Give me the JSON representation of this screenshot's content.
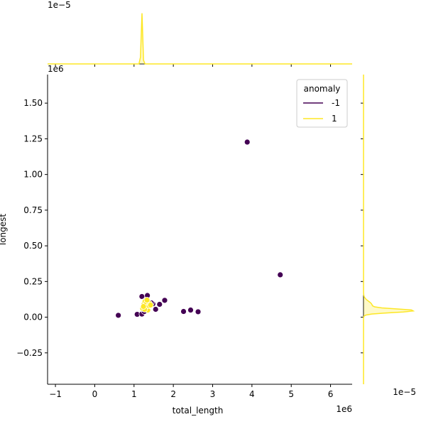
{
  "chart_data": {
    "type": "scatter",
    "subtype": "jointplot",
    "xlabel": "total_length",
    "ylabel": "longest",
    "x_offset_label": "1e6",
    "y_offset_label": "1e6",
    "xlim": [
      -1.2,
      6.55
    ],
    "ylim": [
      -0.47,
      1.7
    ],
    "xticks": [
      -1,
      0,
      1,
      2,
      3,
      4,
      5,
      6
    ],
    "xtick_labels": [
      "−1",
      "0",
      "1",
      "2",
      "3",
      "4",
      "5",
      "6"
    ],
    "yticks": [
      -0.25,
      0.0,
      0.25,
      0.5,
      0.75,
      1.0,
      1.25,
      1.5
    ],
    "ytick_labels": [
      "−0.25",
      "0.00",
      "0.25",
      "0.50",
      "0.75",
      "1.00",
      "1.25",
      "1.50"
    ],
    "grid": false,
    "legend": {
      "title": "anomaly",
      "placement": "top-right",
      "entries": [
        {
          "label": "-1",
          "color": "#440154"
        },
        {
          "label": "1",
          "color": "#fde725"
        }
      ]
    },
    "series": [
      {
        "name": "-1",
        "color": "#440154",
        "points": [
          [
            3.88,
            1.227
          ],
          [
            4.72,
            0.297
          ],
          [
            0.6,
            0.013
          ],
          [
            1.08,
            0.02
          ],
          [
            1.2,
            0.022
          ],
          [
            1.2,
            0.145
          ],
          [
            1.34,
            0.152
          ],
          [
            1.28,
            0.115
          ],
          [
            1.48,
            0.093
          ],
          [
            1.55,
            0.055
          ],
          [
            1.65,
            0.09
          ],
          [
            1.78,
            0.118
          ],
          [
            2.26,
            0.04
          ],
          [
            2.44,
            0.05
          ],
          [
            2.63,
            0.038
          ],
          [
            1.44,
            0.1
          ],
          [
            1.26,
            0.04
          ]
        ]
      },
      {
        "name": "1",
        "color": "#fde725",
        "points": [
          [
            1.22,
            0.06
          ],
          [
            1.25,
            0.09
          ],
          [
            1.28,
            0.11
          ],
          [
            1.3,
            0.07
          ],
          [
            1.32,
            0.1
          ],
          [
            1.35,
            0.05
          ],
          [
            1.38,
            0.08
          ],
          [
            1.4,
            0.095
          ],
          [
            1.42,
            0.085
          ],
          [
            1.27,
            0.055
          ],
          [
            1.33,
            0.12
          ],
          [
            1.24,
            0.075
          ]
        ]
      }
    ],
    "marginal_x": {
      "offset_label": "1e−5",
      "series": [
        {
          "name": "1",
          "color": "#fde725",
          "peak_x": 1.2,
          "peak_width": 0.018,
          "peak_density": 1.0
        }
      ]
    },
    "marginal_y": {
      "offset_label": "1e−5",
      "series": [
        {
          "name": "1",
          "color": "#fde725",
          "peak_y": 0.045,
          "peak_width": 0.012,
          "peak_density": 1.0,
          "shoulder_y": 0.085,
          "shoulder_density": 0.17
        }
      ]
    }
  }
}
